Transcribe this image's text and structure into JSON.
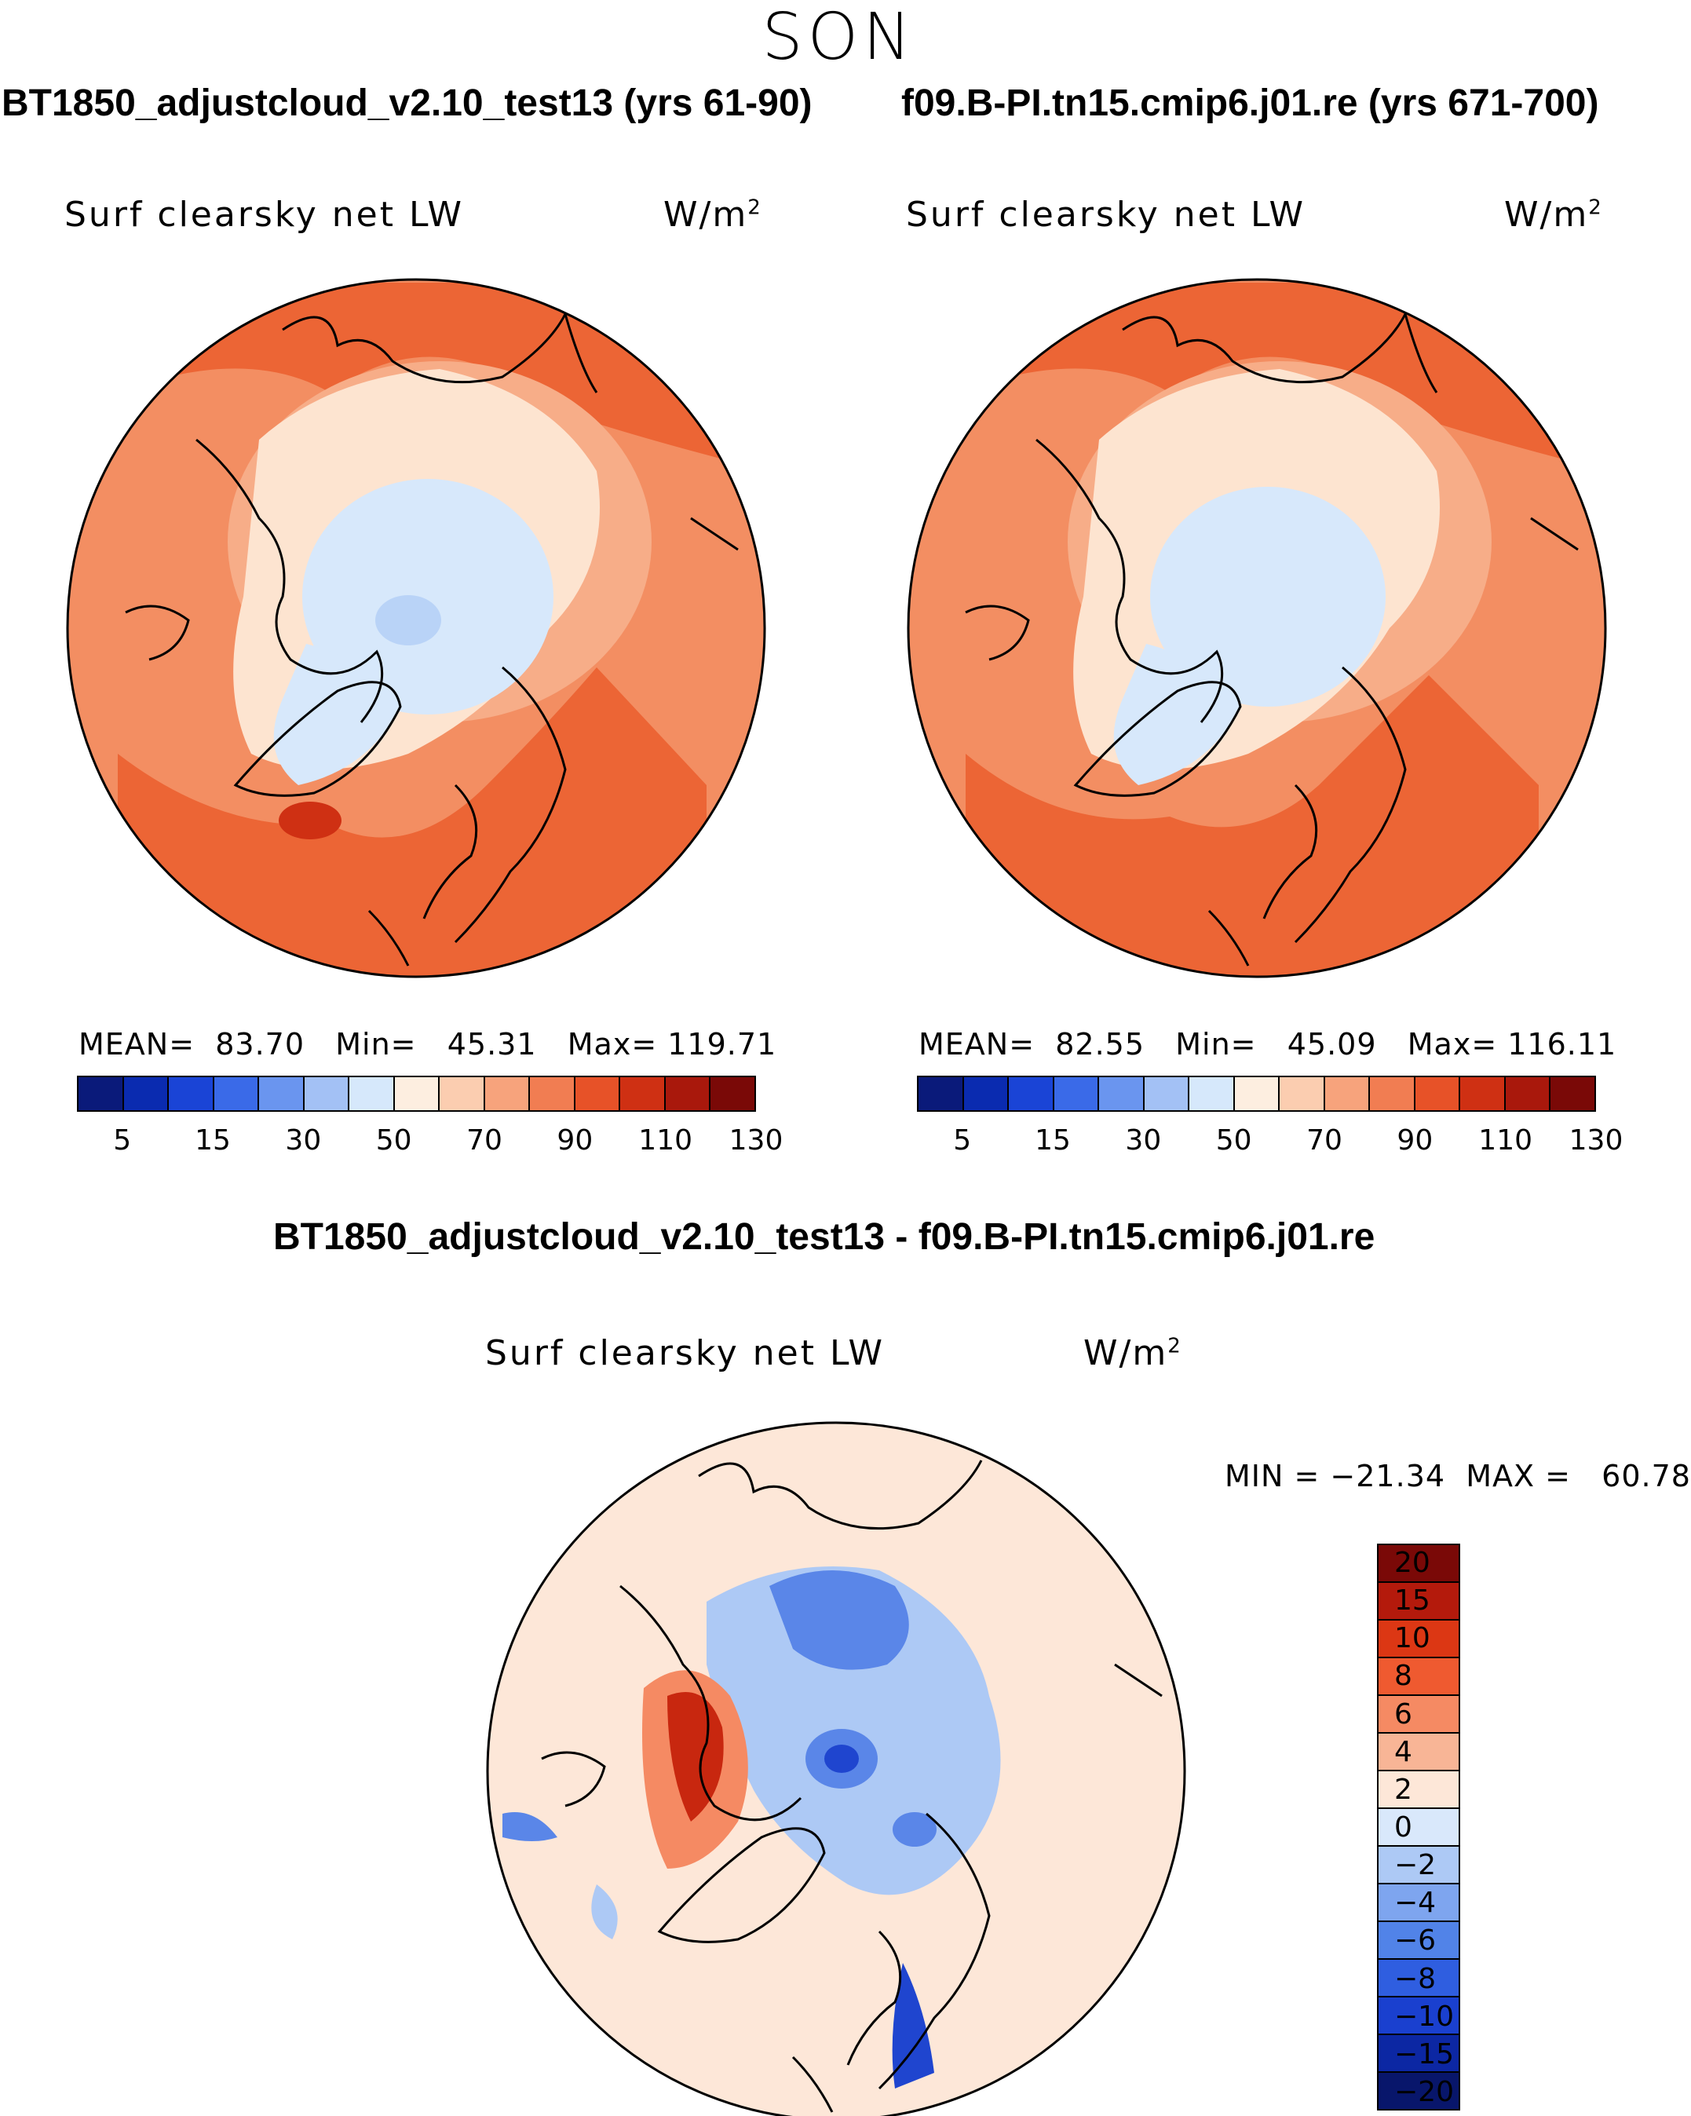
{
  "season": "SON",
  "panels": [
    {
      "case_title": "BT1850_adjustcloud_v2.10_test13 (yrs 61-90)",
      "variable": "Surf clearsky net LW",
      "unit": "W/m",
      "unit_sup": "2",
      "stats": "MEAN=  83.70   Min=   45.31   Max= 119.71"
    },
    {
      "case_title": "f09.B-PI.tn15.cmip6.j01.re (yrs 671-700)",
      "variable": "Surf clearsky net LW",
      "unit": "W/m",
      "unit_sup": "2",
      "stats": "MEAN=  82.55   Min=   45.09   Max= 116.11"
    }
  ],
  "abs_colorbar": {
    "colors": [
      "#0a1a7a",
      "#0a2bb0",
      "#1a44d6",
      "#3a6ae8",
      "#6a95ef",
      "#a3c1f5",
      "#d6e8fb",
      "#fdeee0",
      "#fbcdb0",
      "#f7a37c",
      "#f17d52",
      "#e75228",
      "#cf3013",
      "#a9180c",
      "#7a0907"
    ],
    "tick_labels": [
      "5",
      "15",
      "30",
      "50",
      "70",
      "90",
      "110",
      "130"
    ]
  },
  "diff": {
    "title": "BT1850_adjustcloud_v2.10_test13 - f09.B-PI.tn15.cmip6.j01.re",
    "variable": "Surf clearsky net LW",
    "unit": "W/m",
    "unit_sup": "2",
    "stats": "MIN = −21.34  MAX =   60.78",
    "colorbar": {
      "colors": [
        "#7a0907",
        "#b41a0c",
        "#dc3714",
        "#ef5a30",
        "#f58a63",
        "#f8b596",
        "#fde7d8",
        "#d9e8fb",
        "#adc9f5",
        "#7ea5ef",
        "#5183e8",
        "#2f5ee0",
        "#1a40cf",
        "#0c27a3",
        "#08166b"
      ],
      "tick_labels": [
        "20",
        "15",
        "10",
        "8",
        "6",
        "4",
        "2",
        "0",
        "−2",
        "−4",
        "−6",
        "−8",
        "−10",
        "−15",
        "−20"
      ]
    }
  },
  "map_colors": {
    "ocean_warm": "#f38e62",
    "ocean_hot": "#ec6535",
    "ocean_mid": "#f7ad88",
    "land_pale": "#fde4d0",
    "ice_blue": "#d7e8fb",
    "ice_blue2": "#b9d3f7",
    "coast": "#000000",
    "diff_bg": "#fde7d8",
    "diff_blue1": "#adc9f5",
    "diff_blue2": "#5a86e8",
    "diff_blue3": "#1f45cf",
    "diff_red1": "#f58a63",
    "diff_red2": "#c8270f"
  }
}
